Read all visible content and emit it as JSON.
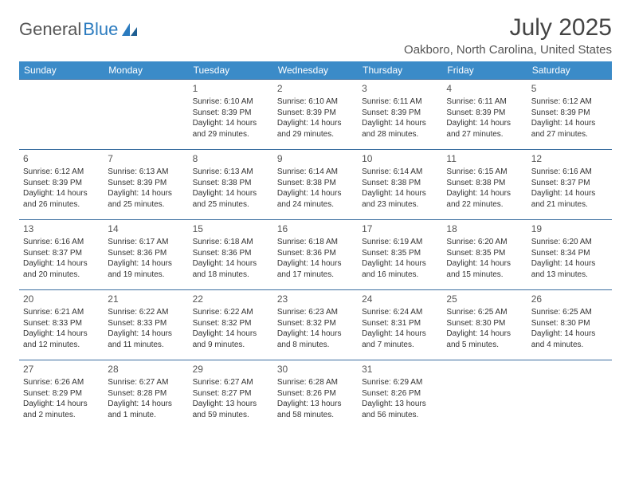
{
  "logo": {
    "text1": "General",
    "text2": "Blue"
  },
  "title": "July 2025",
  "location": "Oakboro, North Carolina, United States",
  "colors": {
    "header_bg": "#3b8bc8",
    "header_text": "#ffffff",
    "border": "#3b6ea0",
    "text": "#333333",
    "logo_gray": "#555555",
    "logo_blue": "#2b7bbf"
  },
  "day_headers": [
    "Sunday",
    "Monday",
    "Tuesday",
    "Wednesday",
    "Thursday",
    "Friday",
    "Saturday"
  ],
  "weeks": [
    [
      null,
      null,
      {
        "n": "1",
        "sr": "6:10 AM",
        "ss": "8:39 PM",
        "dl": "14 hours and 29 minutes."
      },
      {
        "n": "2",
        "sr": "6:10 AM",
        "ss": "8:39 PM",
        "dl": "14 hours and 29 minutes."
      },
      {
        "n": "3",
        "sr": "6:11 AM",
        "ss": "8:39 PM",
        "dl": "14 hours and 28 minutes."
      },
      {
        "n": "4",
        "sr": "6:11 AM",
        "ss": "8:39 PM",
        "dl": "14 hours and 27 minutes."
      },
      {
        "n": "5",
        "sr": "6:12 AM",
        "ss": "8:39 PM",
        "dl": "14 hours and 27 minutes."
      }
    ],
    [
      {
        "n": "6",
        "sr": "6:12 AM",
        "ss": "8:39 PM",
        "dl": "14 hours and 26 minutes."
      },
      {
        "n": "7",
        "sr": "6:13 AM",
        "ss": "8:39 PM",
        "dl": "14 hours and 25 minutes."
      },
      {
        "n": "8",
        "sr": "6:13 AM",
        "ss": "8:38 PM",
        "dl": "14 hours and 25 minutes."
      },
      {
        "n": "9",
        "sr": "6:14 AM",
        "ss": "8:38 PM",
        "dl": "14 hours and 24 minutes."
      },
      {
        "n": "10",
        "sr": "6:14 AM",
        "ss": "8:38 PM",
        "dl": "14 hours and 23 minutes."
      },
      {
        "n": "11",
        "sr": "6:15 AM",
        "ss": "8:38 PM",
        "dl": "14 hours and 22 minutes."
      },
      {
        "n": "12",
        "sr": "6:16 AM",
        "ss": "8:37 PM",
        "dl": "14 hours and 21 minutes."
      }
    ],
    [
      {
        "n": "13",
        "sr": "6:16 AM",
        "ss": "8:37 PM",
        "dl": "14 hours and 20 minutes."
      },
      {
        "n": "14",
        "sr": "6:17 AM",
        "ss": "8:36 PM",
        "dl": "14 hours and 19 minutes."
      },
      {
        "n": "15",
        "sr": "6:18 AM",
        "ss": "8:36 PM",
        "dl": "14 hours and 18 minutes."
      },
      {
        "n": "16",
        "sr": "6:18 AM",
        "ss": "8:36 PM",
        "dl": "14 hours and 17 minutes."
      },
      {
        "n": "17",
        "sr": "6:19 AM",
        "ss": "8:35 PM",
        "dl": "14 hours and 16 minutes."
      },
      {
        "n": "18",
        "sr": "6:20 AM",
        "ss": "8:35 PM",
        "dl": "14 hours and 15 minutes."
      },
      {
        "n": "19",
        "sr": "6:20 AM",
        "ss": "8:34 PM",
        "dl": "14 hours and 13 minutes."
      }
    ],
    [
      {
        "n": "20",
        "sr": "6:21 AM",
        "ss": "8:33 PM",
        "dl": "14 hours and 12 minutes."
      },
      {
        "n": "21",
        "sr": "6:22 AM",
        "ss": "8:33 PM",
        "dl": "14 hours and 11 minutes."
      },
      {
        "n": "22",
        "sr": "6:22 AM",
        "ss": "8:32 PM",
        "dl": "14 hours and 9 minutes."
      },
      {
        "n": "23",
        "sr": "6:23 AM",
        "ss": "8:32 PM",
        "dl": "14 hours and 8 minutes."
      },
      {
        "n": "24",
        "sr": "6:24 AM",
        "ss": "8:31 PM",
        "dl": "14 hours and 7 minutes."
      },
      {
        "n": "25",
        "sr": "6:25 AM",
        "ss": "8:30 PM",
        "dl": "14 hours and 5 minutes."
      },
      {
        "n": "26",
        "sr": "6:25 AM",
        "ss": "8:30 PM",
        "dl": "14 hours and 4 minutes."
      }
    ],
    [
      {
        "n": "27",
        "sr": "6:26 AM",
        "ss": "8:29 PM",
        "dl": "14 hours and 2 minutes."
      },
      {
        "n": "28",
        "sr": "6:27 AM",
        "ss": "8:28 PM",
        "dl": "14 hours and 1 minute."
      },
      {
        "n": "29",
        "sr": "6:27 AM",
        "ss": "8:27 PM",
        "dl": "13 hours and 59 minutes."
      },
      {
        "n": "30",
        "sr": "6:28 AM",
        "ss": "8:26 PM",
        "dl": "13 hours and 58 minutes."
      },
      {
        "n": "31",
        "sr": "6:29 AM",
        "ss": "8:26 PM",
        "dl": "13 hours and 56 minutes."
      },
      null,
      null
    ]
  ],
  "labels": {
    "sunrise": "Sunrise:",
    "sunset": "Sunset:",
    "daylight": "Daylight:"
  }
}
